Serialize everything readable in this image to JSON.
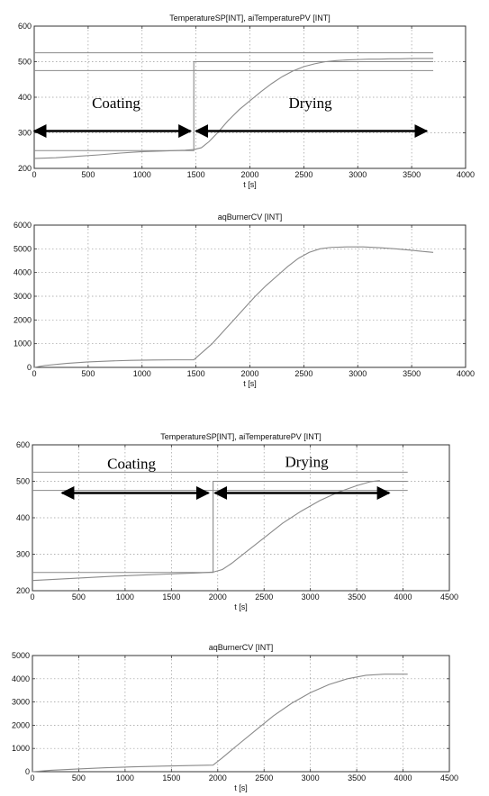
{
  "chart_data": [
    {
      "type": "line",
      "title": "TemperatureSP[INT], aiTemperaturePV [INT]",
      "xlabel": "t [s]",
      "ylabel": "",
      "xlim": [
        0,
        4000
      ],
      "ylim": [
        200,
        600
      ],
      "xticks": [
        0,
        500,
        1000,
        1500,
        2000,
        2500,
        3000,
        3500,
        4000
      ],
      "yticks": [
        200,
        300,
        400,
        500,
        600
      ],
      "grid": true,
      "series": [
        {
          "label_visible": false,
          "points": [
            [
              0,
              250
            ],
            [
              1480,
              250
            ],
            [
              1480,
              500
            ],
            [
              3700,
              500
            ]
          ]
        },
        {
          "label_visible": false,
          "points": [
            [
              0,
              525
            ],
            [
              3700,
              525
            ]
          ]
        },
        {
          "label_visible": false,
          "points": [
            [
              0,
              475
            ],
            [
              3700,
              475
            ]
          ]
        },
        {
          "label_visible": false,
          "points": [
            [
              0,
              228
            ],
            [
              200,
              230
            ],
            [
              400,
              234
            ],
            [
              600,
              238
            ],
            [
              800,
              243
            ],
            [
              1000,
              247
            ],
            [
              1200,
              249
            ],
            [
              1400,
              251
            ],
            [
              1480,
              253
            ],
            [
              1550,
              258
            ],
            [
              1620,
              275
            ],
            [
              1700,
              300
            ],
            [
              1800,
              335
            ],
            [
              1900,
              365
            ],
            [
              2000,
              390
            ],
            [
              2100,
              415
            ],
            [
              2200,
              438
            ],
            [
              2300,
              458
            ],
            [
              2400,
              474
            ],
            [
              2500,
              486
            ],
            [
              2600,
              494
            ],
            [
              2700,
              500
            ],
            [
              2800,
              503
            ],
            [
              2900,
              505
            ],
            [
              3000,
              506
            ],
            [
              3100,
              507
            ],
            [
              3200,
              507
            ],
            [
              3300,
              508
            ],
            [
              3400,
              508
            ],
            [
              3500,
              509
            ],
            [
              3600,
              509
            ],
            [
              3700,
              509
            ]
          ]
        }
      ],
      "annotations": [
        {
          "text": "Coating",
          "x": 760,
          "y": 370
        },
        {
          "text": "Drying",
          "x": 2560,
          "y": 370
        }
      ],
      "arrows": [
        {
          "x1": 0,
          "x2": 1450,
          "y": 305
        },
        {
          "x1": 1500,
          "x2": 3640,
          "y": 305
        }
      ]
    },
    {
      "type": "line",
      "title": "aqBurnerCV [INT]",
      "xlabel": "t [s]",
      "ylabel": "",
      "xlim": [
        0,
        4000
      ],
      "ylim": [
        0,
        6000
      ],
      "xticks": [
        0,
        500,
        1000,
        1500,
        2000,
        2500,
        3000,
        3500,
        4000
      ],
      "yticks": [
        0,
        1000,
        2000,
        3000,
        4000,
        5000,
        6000
      ],
      "grid": true,
      "series": [
        {
          "label_visible": false,
          "points": [
            [
              0,
              0
            ],
            [
              100,
              80
            ],
            [
              300,
              170
            ],
            [
              500,
              230
            ],
            [
              700,
              270
            ],
            [
              900,
              295
            ],
            [
              1100,
              310
            ],
            [
              1300,
              318
            ],
            [
              1480,
              322
            ],
            [
              1550,
              600
            ],
            [
              1650,
              1000
            ],
            [
              1750,
              1500
            ],
            [
              1850,
              2000
            ],
            [
              1950,
              2500
            ],
            [
              2050,
              3000
            ],
            [
              2150,
              3450
            ],
            [
              2250,
              3850
            ],
            [
              2350,
              4250
            ],
            [
              2450,
              4600
            ],
            [
              2550,
              4850
            ],
            [
              2650,
              5000
            ],
            [
              2750,
              5060
            ],
            [
              2900,
              5080
            ],
            [
              3050,
              5080
            ],
            [
              3200,
              5050
            ],
            [
              3350,
              5000
            ],
            [
              3500,
              4940
            ],
            [
              3600,
              4890
            ],
            [
              3700,
              4850
            ]
          ]
        }
      ],
      "annotations": [],
      "arrows": []
    },
    {
      "type": "line",
      "title": "TemperatureSP[INT], aiTemperaturePV [INT]",
      "xlabel": "t [s]",
      "ylabel": "",
      "xlim": [
        0,
        4500
      ],
      "ylim": [
        200,
        600
      ],
      "xticks": [
        0,
        500,
        1000,
        1500,
        2000,
        2500,
        3000,
        3500,
        4000,
        4500
      ],
      "yticks": [
        200,
        300,
        400,
        500,
        600
      ],
      "grid": true,
      "series": [
        {
          "label_visible": false,
          "points": [
            [
              0,
              250
            ],
            [
              1950,
              250
            ],
            [
              1950,
              500
            ],
            [
              4050,
              500
            ]
          ]
        },
        {
          "label_visible": false,
          "points": [
            [
              0,
              525
            ],
            [
              4050,
              525
            ]
          ]
        },
        {
          "label_visible": false,
          "points": [
            [
              0,
              475
            ],
            [
              4050,
              475
            ]
          ]
        },
        {
          "label_visible": false,
          "points": [
            [
              0,
              228
            ],
            [
              300,
              232
            ],
            [
              600,
              236
            ],
            [
              900,
              240
            ],
            [
              1200,
              243
            ],
            [
              1500,
              246
            ],
            [
              1800,
              249
            ],
            [
              1950,
              251
            ],
            [
              2050,
              258
            ],
            [
              2150,
              275
            ],
            [
              2300,
              305
            ],
            [
              2500,
              345
            ],
            [
              2700,
              385
            ],
            [
              2900,
              418
            ],
            [
              3100,
              447
            ],
            [
              3300,
              470
            ],
            [
              3500,
              488
            ],
            [
              3650,
              499
            ],
            [
              3750,
              502
            ]
          ]
        }
      ],
      "annotations": [
        {
          "text": "Coating",
          "x": 1070,
          "y": 535
        },
        {
          "text": "Drying",
          "x": 2960,
          "y": 540
        }
      ],
      "arrows": [
        {
          "x1": 320,
          "x2": 1900,
          "y": 468
        },
        {
          "x1": 1970,
          "x2": 3850,
          "y": 468
        }
      ]
    },
    {
      "type": "line",
      "title": "aqBurnerCV [INT]",
      "xlabel": "t [s]",
      "ylabel": "",
      "xlim": [
        0,
        4500
      ],
      "ylim": [
        0,
        5000
      ],
      "xticks": [
        0,
        500,
        1000,
        1500,
        2000,
        2500,
        3000,
        3500,
        4000,
        4500
      ],
      "yticks": [
        0,
        1000,
        2000,
        3000,
        4000,
        5000
      ],
      "grid": true,
      "series": [
        {
          "label_visible": false,
          "points": [
            [
              0,
              0
            ],
            [
              200,
              60
            ],
            [
              500,
              120
            ],
            [
              800,
              170
            ],
            [
              1100,
              210
            ],
            [
              1400,
              240
            ],
            [
              1700,
              265
            ],
            [
              1950,
              285
            ],
            [
              2050,
              600
            ],
            [
              2200,
              1100
            ],
            [
              2400,
              1750
            ],
            [
              2600,
              2400
            ],
            [
              2800,
              2950
            ],
            [
              3000,
              3400
            ],
            [
              3200,
              3750
            ],
            [
              3400,
              4000
            ],
            [
              3600,
              4150
            ],
            [
              3800,
              4200
            ],
            [
              4050,
              4200
            ]
          ]
        }
      ],
      "annotations": [],
      "arrows": []
    }
  ]
}
